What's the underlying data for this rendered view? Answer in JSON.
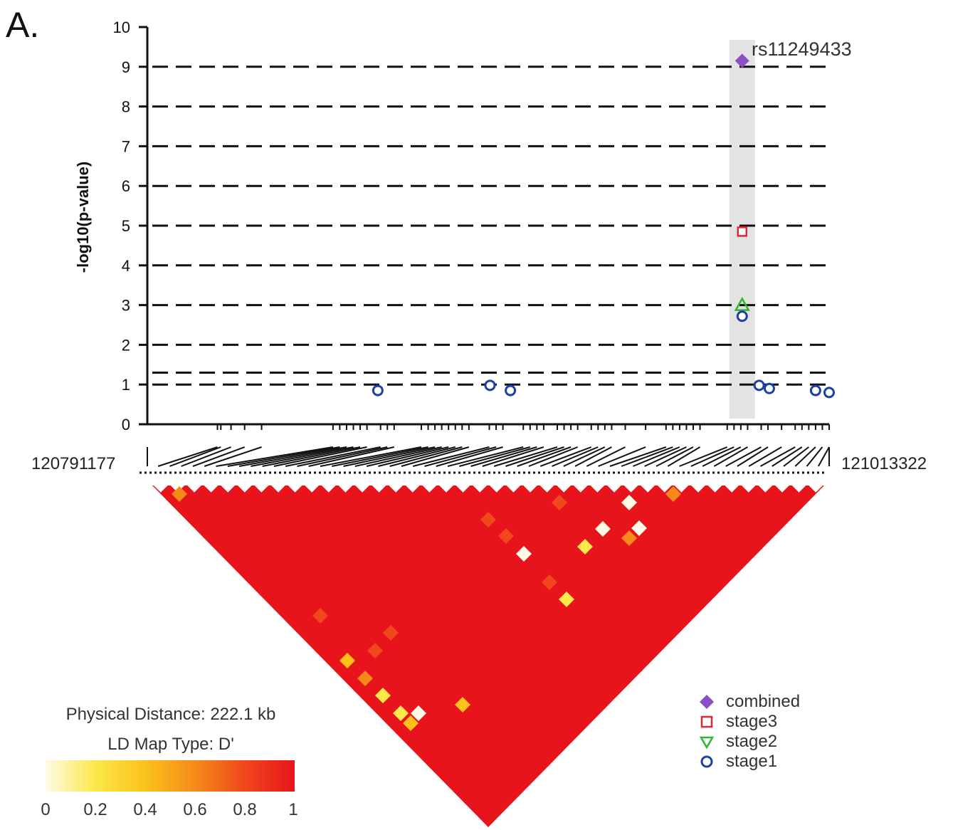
{
  "panel_label": "A.",
  "chart_data": {
    "type": "scatter",
    "ylabel": "-log10(p-value)",
    "ylim": [
      0,
      10
    ],
    "yticks": [
      "0",
      "1",
      "2",
      "3",
      "4",
      "5",
      "6",
      "7",
      "8",
      "9",
      "10"
    ],
    "gridlines_y": [
      1,
      1.3,
      2,
      3,
      4,
      5,
      6,
      7,
      8,
      9
    ],
    "highlight_snp": "rs11249433",
    "series": [
      {
        "name": "combined",
        "marker": "diamond",
        "color": "#8a4fc4",
        "points": [
          {
            "x": 0.872,
            "y": 9.15
          }
        ]
      },
      {
        "name": "stage3",
        "marker": "square",
        "color": "#e0282e",
        "points": [
          {
            "x": 0.872,
            "y": 4.85
          }
        ]
      },
      {
        "name": "stage2",
        "marker": "triangle",
        "color": "#2fb82f",
        "points": [
          {
            "x": 0.872,
            "y": 3.0
          }
        ]
      },
      {
        "name": "stage1",
        "marker": "circle",
        "color": "#1f3fa8",
        "points": [
          {
            "x": 0.336,
            "y": 0.85
          },
          {
            "x": 0.501,
            "y": 0.98
          },
          {
            "x": 0.531,
            "y": 0.85
          },
          {
            "x": 0.872,
            "y": 2.72
          },
          {
            "x": 0.897,
            "y": 0.98
          },
          {
            "x": 0.912,
            "y": 0.9
          },
          {
            "x": 0.98,
            "y": 0.85
          },
          {
            "x": 1.0,
            "y": 0.8
          }
        ]
      }
    ]
  },
  "region": {
    "start": "120791177",
    "end": "121013322"
  },
  "ld_info": {
    "distance": "Physical Distance: 222.1 kb",
    "map_type": "LD Map Type: D'"
  },
  "colorscale": {
    "ticks": [
      "0",
      "0.2",
      "0.4",
      "0.6",
      "0.8",
      "1"
    ],
    "colors": [
      "#fffbe6",
      "#fbe84a",
      "#fbc21a",
      "#f58a1a",
      "#f0481c",
      "#e8141c"
    ]
  },
  "legend": {
    "items": [
      "combined",
      "stage3",
      "stage2",
      "stage1"
    ]
  },
  "colors": {
    "ld_high": "#e8141c",
    "highlight_band": "#e3e3e3"
  }
}
